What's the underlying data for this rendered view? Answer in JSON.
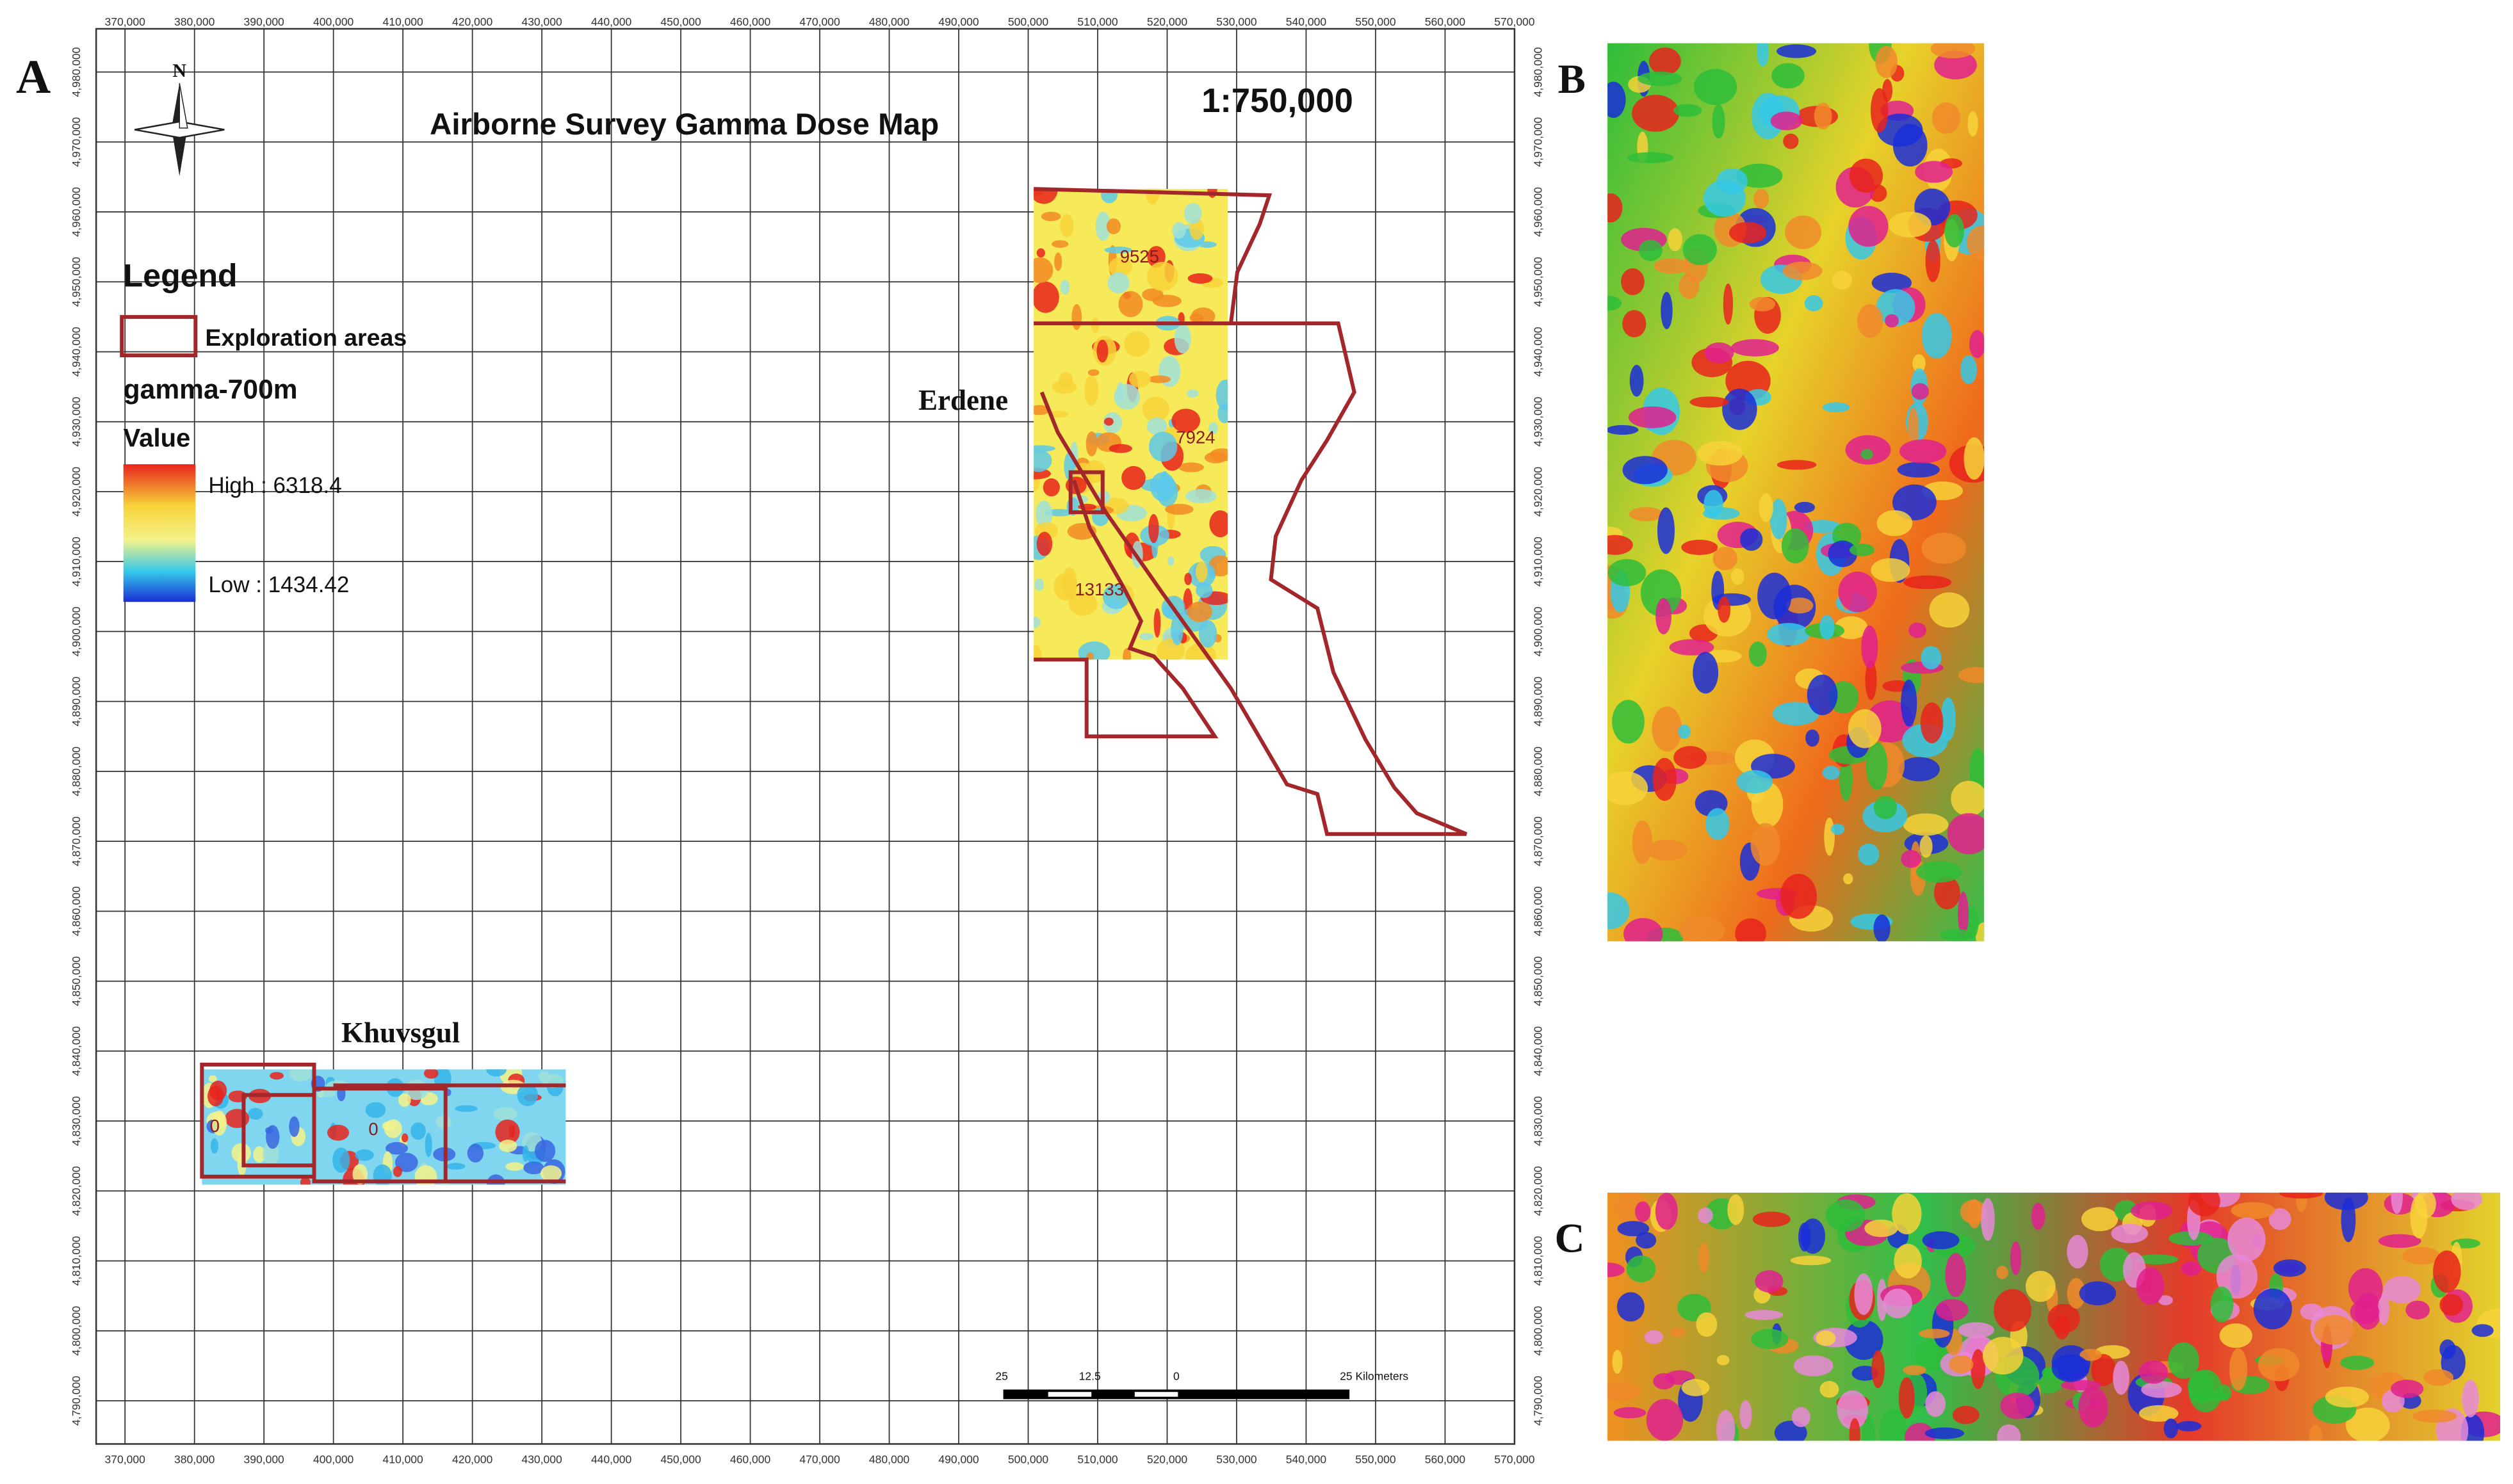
{
  "panel_labels": [
    "A",
    "B",
    "C"
  ],
  "map": {
    "title": "Airborne Survey Gamma Dose Map",
    "scale": "1:750,000",
    "north": "N",
    "x_ticks": [
      "370,000",
      "380,000",
      "390,000",
      "400,000",
      "410,000",
      "420,000",
      "430,000",
      "440,000",
      "450,000",
      "460,000",
      "470,000",
      "480,000",
      "490,000",
      "500,000",
      "510,000",
      "520,000",
      "530,000",
      "540,000",
      "550,000",
      "560,000",
      "570,000"
    ],
    "y_ticks": [
      "4,980,000",
      "4,970,000",
      "4,960,000",
      "4,950,000",
      "4,940,000",
      "4,930,000",
      "4,920,000",
      "4,910,000",
      "4,900,000",
      "4,890,000",
      "4,880,000",
      "4,870,000",
      "4,860,000",
      "4,850,000",
      "4,840,000",
      "4,830,000",
      "4,820,000",
      "4,810,000",
      "4,800,000",
      "4,790,000"
    ],
    "legend": {
      "title": "Legend",
      "exploration": "Exploration areas",
      "layer": "gamma-700m",
      "field": "Value",
      "high": "High : 6318.4",
      "low": "Low : 1434.42"
    },
    "areas": {
      "erdene": "Erdene",
      "khuvsgul": "Khuvsgul"
    },
    "area_labels": [
      "9525",
      "7924",
      "13133",
      "0",
      "0"
    ],
    "scale_bar": [
      "25",
      "12.5",
      "0",
      "25 Kilometers"
    ]
  }
}
